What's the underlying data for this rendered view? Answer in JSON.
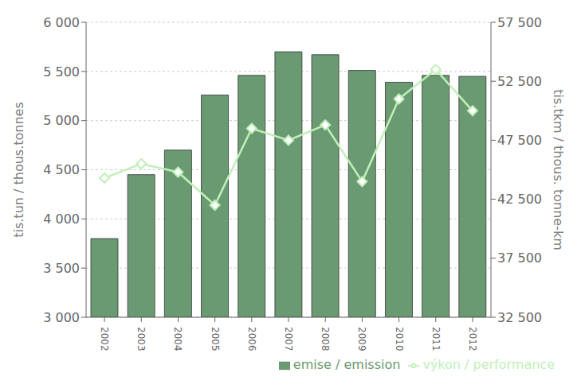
{
  "chart_data": {
    "type": "bar",
    "categories": [
      "2002",
      "2003",
      "2004",
      "2005",
      "2006",
      "2007",
      "2008",
      "2009",
      "2010",
      "2011",
      "2012"
    ],
    "series": [
      {
        "name": "emise / emission",
        "type": "bar",
        "color": "#6a9a72",
        "values": [
          3800,
          4450,
          4700,
          5260,
          5460,
          5700,
          5670,
          5510,
          5390,
          5460,
          5450
        ]
      },
      {
        "name": "výkon / performance",
        "type": "line",
        "axis": "y2",
        "color": "#c0f0b8",
        "marker": "diamond",
        "values": [
          44300,
          45500,
          44800,
          42000,
          48500,
          47500,
          48800,
          44000,
          51000,
          53500,
          50000
        ]
      }
    ],
    "ylabel": "tis.tun / thous.tonnes",
    "y2label": "tis.tkm / thous. tonne-km",
    "ylim": [
      3000,
      6000
    ],
    "yticks": [
      {
        "value": 3000,
        "label": "3 000"
      },
      {
        "value": 3500,
        "label": "3 500"
      },
      {
        "value": 4000,
        "label": "4 000"
      },
      {
        "value": 4500,
        "label": "4 500"
      },
      {
        "value": 5000,
        "label": "5 000"
      },
      {
        "value": 5500,
        "label": "5 500"
      },
      {
        "value": 6000,
        "label": "6 000"
      }
    ],
    "y2lim": [
      32500,
      57500
    ],
    "y2ticks": [
      {
        "value": 32500,
        "label": "32 500"
      },
      {
        "value": 37500,
        "label": "37 500"
      },
      {
        "value": 42500,
        "label": "42 500"
      },
      {
        "value": 47500,
        "label": "47 500"
      },
      {
        "value": 52500,
        "label": "52 500"
      },
      {
        "value": 57500,
        "label": "57 500"
      }
    ],
    "grid": true,
    "legend": "lower right"
  }
}
